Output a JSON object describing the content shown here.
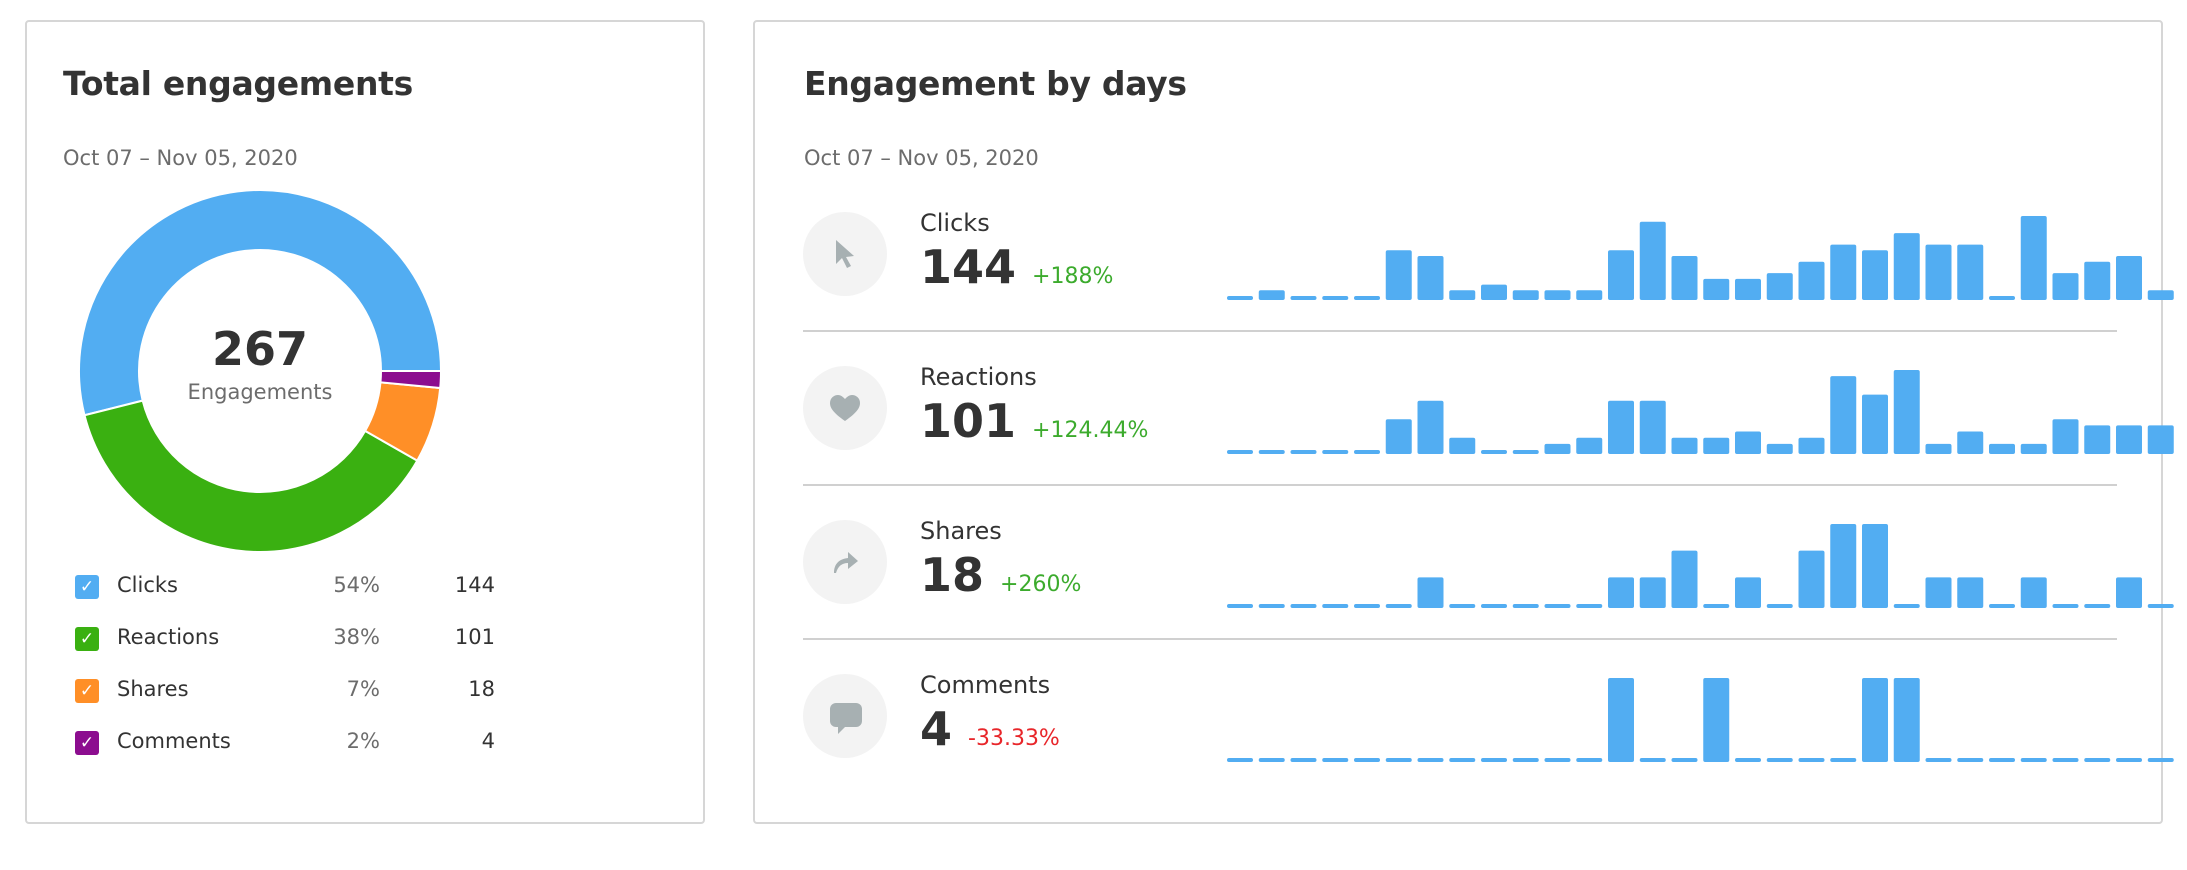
{
  "total": {
    "title": "Total engagements",
    "date_range": "Oct 07 – Nov 05, 2020",
    "center_value": "267",
    "center_label": "Engagements",
    "legend": [
      {
        "label": "Clicks",
        "percent": "54%",
        "value": "144",
        "color": "#52adf2",
        "checked": true
      },
      {
        "label": "Reactions",
        "percent": "38%",
        "value": "101",
        "color": "#3ab011",
        "checked": true
      },
      {
        "label": "Shares",
        "percent": "7%",
        "value": "18",
        "color": "#ff8f27",
        "checked": true
      },
      {
        "label": "Comments",
        "percent": "2%",
        "value": "4",
        "color": "#8c0d8f",
        "checked": true
      }
    ]
  },
  "by_days": {
    "title": "Engagement by days",
    "date_range": "Oct 07 – Nov 05, 2020",
    "metrics": [
      {
        "label": "Clicks",
        "value": "144",
        "change": "+188%",
        "trend": "positive",
        "icon": "cursor-icon"
      },
      {
        "label": "Reactions",
        "value": "101",
        "change": "+124.44%",
        "trend": "positive",
        "icon": "heart-icon"
      },
      {
        "label": "Shares",
        "value": "18",
        "change": "+260%",
        "trend": "positive",
        "icon": "share-icon"
      },
      {
        "label": "Comments",
        "value": "4",
        "change": "-33.33%",
        "trend": "negative",
        "icon": "comment-icon"
      }
    ]
  },
  "chart_data": [
    {
      "type": "pie",
      "variant": "donut",
      "categories": [
        "Clicks",
        "Reactions",
        "Shares",
        "Comments"
      ],
      "values": [
        144,
        101,
        18,
        4
      ],
      "colors": [
        "#52adf2",
        "#3ab011",
        "#ff8f27",
        "#8c0d8f"
      ]
    },
    {
      "type": "bar",
      "series": [
        {
          "name": "Clicks",
          "values": [
            0,
            1,
            0,
            0,
            0,
            8,
            7,
            1,
            2,
            1,
            1,
            1,
            8,
            13,
            7,
            3,
            3,
            4,
            6,
            9,
            8,
            11,
            9,
            9,
            0,
            14,
            4,
            6,
            7,
            1
          ]
        },
        {
          "name": "Reactions",
          "values": [
            0,
            0,
            0,
            0,
            0,
            5,
            8,
            2,
            0,
            0,
            1,
            2,
            8,
            8,
            2,
            2,
            3,
            1,
            2,
            12,
            9,
            13,
            1,
            3,
            1,
            1,
            5,
            4,
            4,
            4
          ]
        },
        {
          "name": "Shares",
          "values": [
            0,
            0,
            0,
            0,
            0,
            0,
            1,
            0,
            0,
            0,
            0,
            0,
            1,
            1,
            2,
            0,
            1,
            0,
            2,
            3,
            3,
            0,
            1,
            1,
            0,
            1,
            0,
            0,
            1,
            0
          ]
        },
        {
          "name": "Comments",
          "values": [
            0,
            0,
            0,
            0,
            0,
            0,
            0,
            0,
            0,
            0,
            0,
            0,
            1,
            0,
            0,
            1,
            0,
            0,
            0,
            0,
            1,
            1,
            0,
            0,
            0,
            0,
            0,
            0,
            0,
            0
          ]
        }
      ],
      "color": "#52adf2"
    }
  ]
}
